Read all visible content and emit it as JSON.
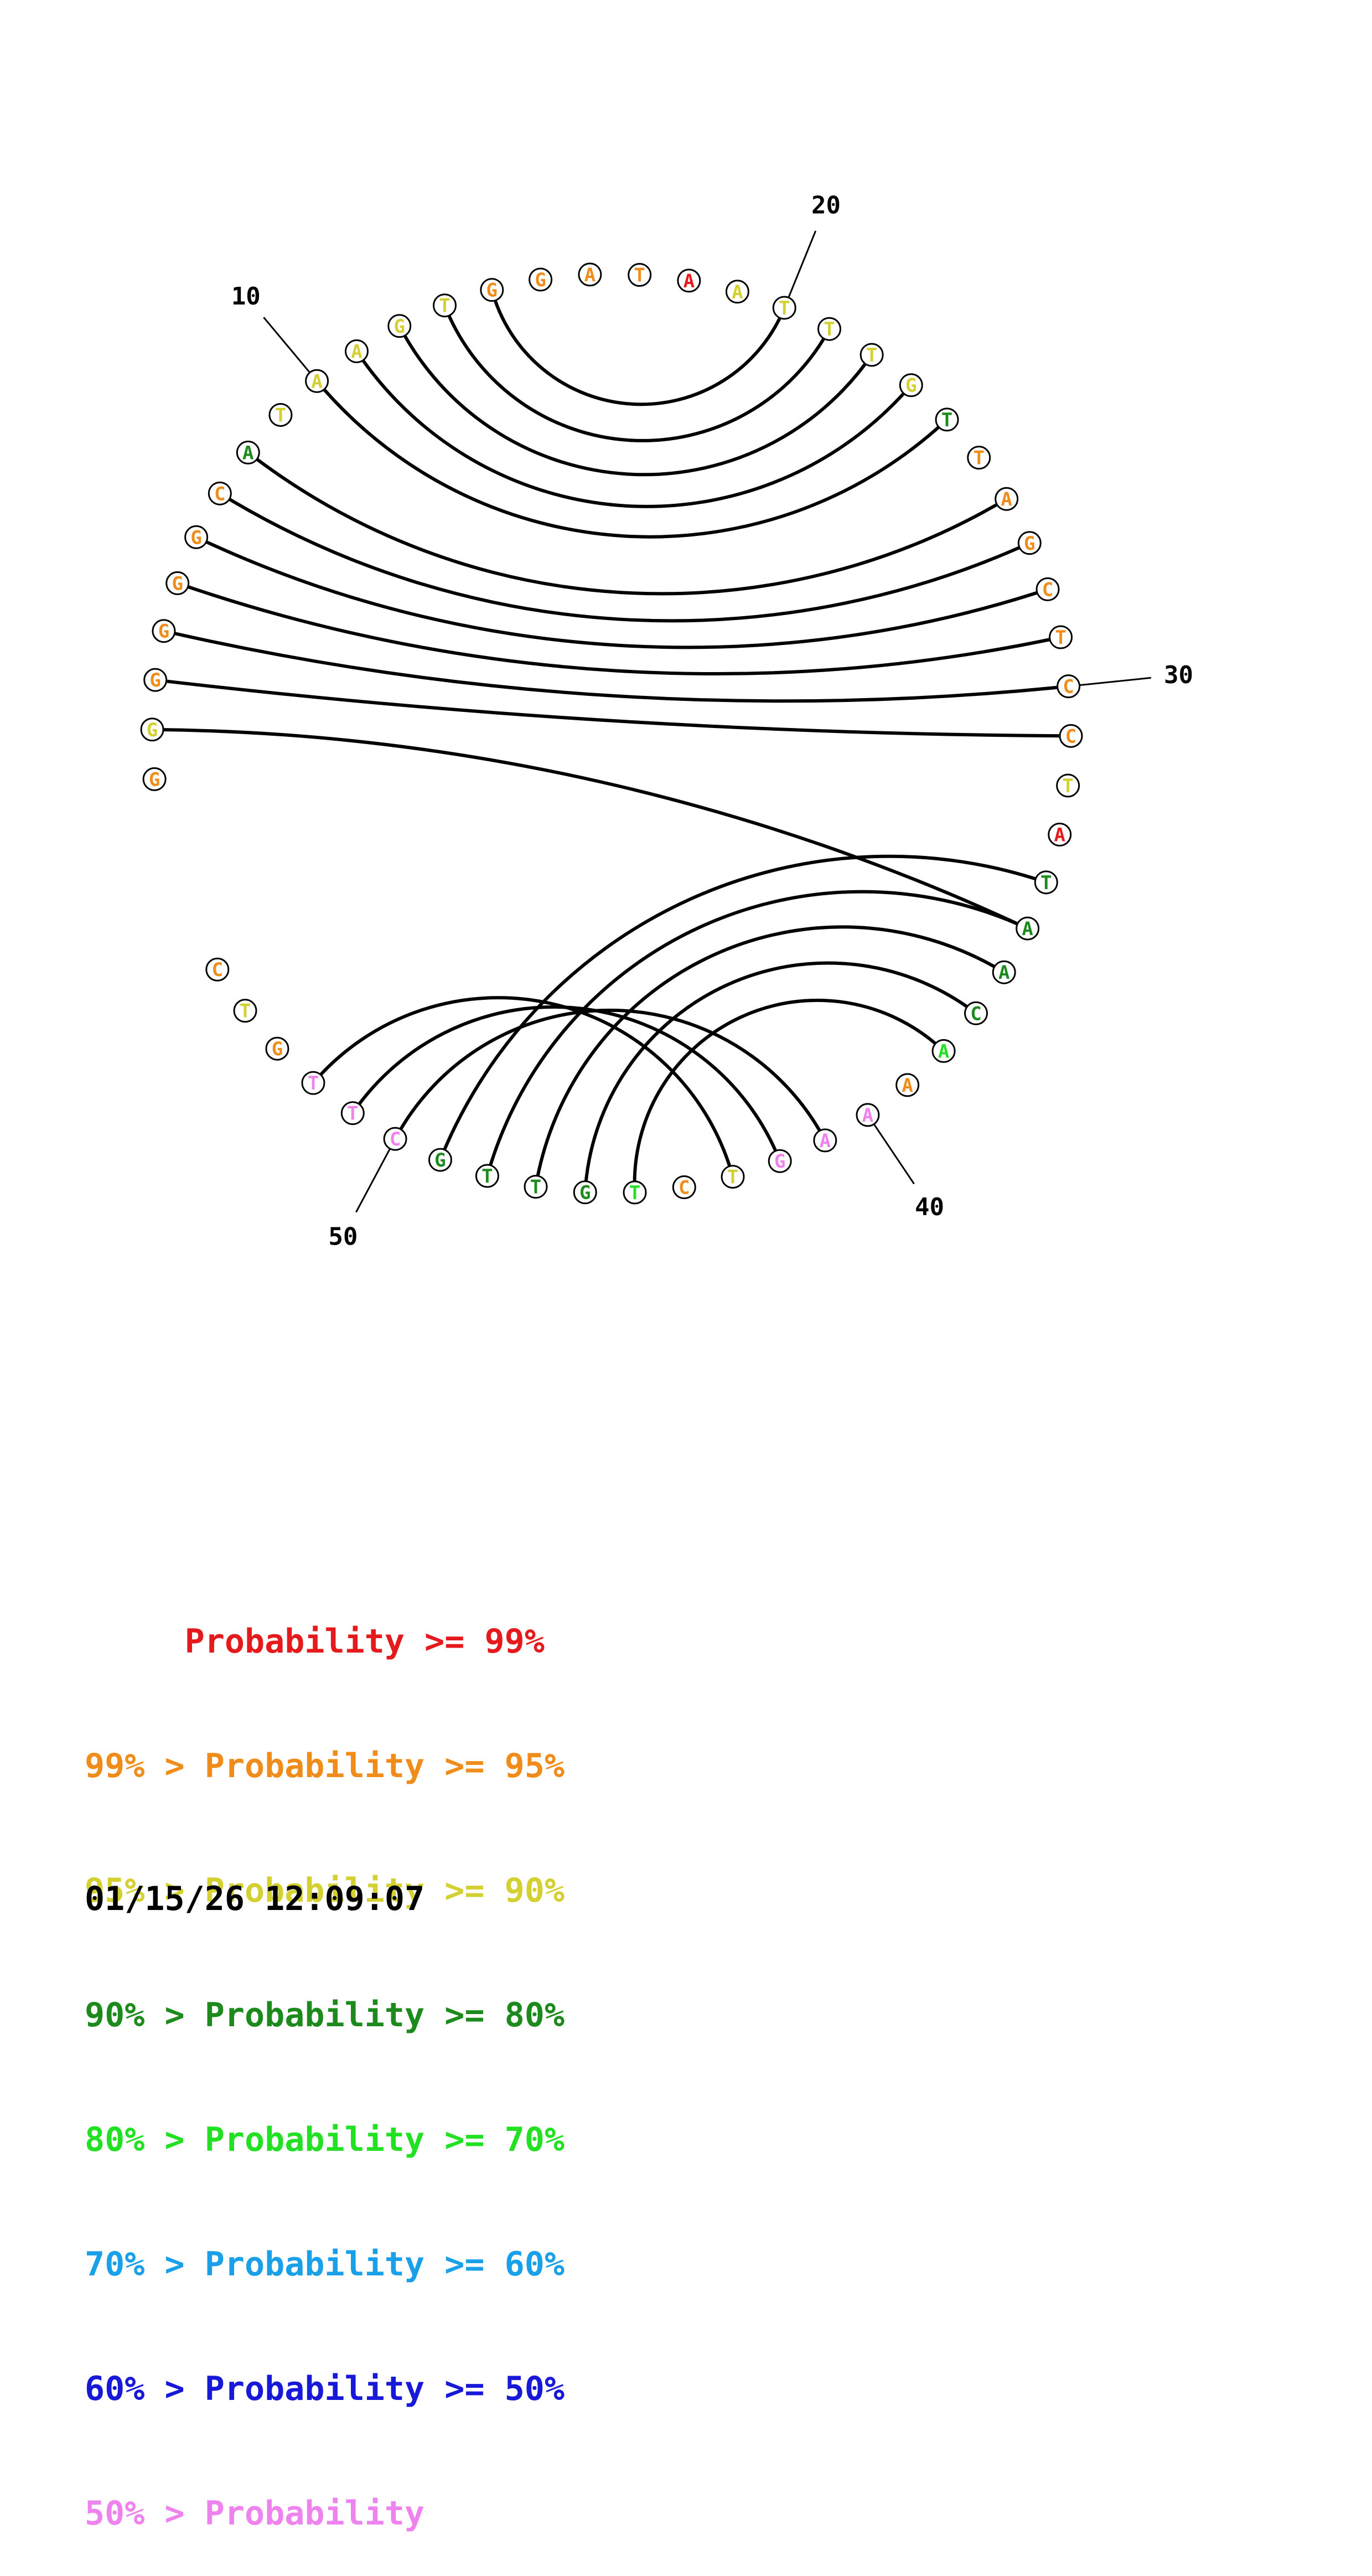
{
  "colors": {
    "p99": "#e41a1c",
    "p95": "#f08c1a",
    "p90": "#d4d032",
    "p80": "#1c8a1c",
    "p70": "#22e022",
    "p60": "#1aa0e8",
    "p50": "#1818d8",
    "plt50": "#ee82ee"
  },
  "sequence": [
    {
      "base": "G",
      "color": "p95"
    },
    {
      "base": "G",
      "color": "p90"
    },
    {
      "base": "G",
      "color": "p95"
    },
    {
      "base": "G",
      "color": "p95"
    },
    {
      "base": "G",
      "color": "p95"
    },
    {
      "base": "G",
      "color": "p95"
    },
    {
      "base": "C",
      "color": "p95"
    },
    {
      "base": "A",
      "color": "p80"
    },
    {
      "base": "T",
      "color": "p90"
    },
    {
      "base": "A",
      "color": "p90"
    },
    {
      "base": "A",
      "color": "p90"
    },
    {
      "base": "G",
      "color": "p90"
    },
    {
      "base": "T",
      "color": "p90"
    },
    {
      "base": "G",
      "color": "p95"
    },
    {
      "base": "G",
      "color": "p95"
    },
    {
      "base": "A",
      "color": "p95"
    },
    {
      "base": "T",
      "color": "p95"
    },
    {
      "base": "A",
      "color": "p99"
    },
    {
      "base": "A",
      "color": "p90"
    },
    {
      "base": "T",
      "color": "p90"
    },
    {
      "base": "T",
      "color": "p90"
    },
    {
      "base": "T",
      "color": "p90"
    },
    {
      "base": "G",
      "color": "p90"
    },
    {
      "base": "T",
      "color": "p80"
    },
    {
      "base": "T",
      "color": "p95"
    },
    {
      "base": "A",
      "color": "p95"
    },
    {
      "base": "G",
      "color": "p95"
    },
    {
      "base": "C",
      "color": "p95"
    },
    {
      "base": "T",
      "color": "p95"
    },
    {
      "base": "C",
      "color": "p95"
    },
    {
      "base": "C",
      "color": "p95"
    },
    {
      "base": "T",
      "color": "p90"
    },
    {
      "base": "A",
      "color": "p99"
    },
    {
      "base": "T",
      "color": "p80"
    },
    {
      "base": "A",
      "color": "p80"
    },
    {
      "base": "A",
      "color": "p80"
    },
    {
      "base": "C",
      "color": "p80"
    },
    {
      "base": "A",
      "color": "p70"
    },
    {
      "base": "A",
      "color": "p95"
    },
    {
      "base": "A",
      "color": "plt50"
    },
    {
      "base": "A",
      "color": "plt50"
    },
    {
      "base": "G",
      "color": "plt50"
    },
    {
      "base": "T",
      "color": "p90"
    },
    {
      "base": "C",
      "color": "p95"
    },
    {
      "base": "T",
      "color": "p70"
    },
    {
      "base": "G",
      "color": "p80"
    },
    {
      "base": "T",
      "color": "p80"
    },
    {
      "base": "T",
      "color": "p80"
    },
    {
      "base": "G",
      "color": "p80"
    },
    {
      "base": "C",
      "color": "plt50"
    },
    {
      "base": "T",
      "color": "plt50"
    },
    {
      "base": "T",
      "color": "plt50"
    },
    {
      "base": "G",
      "color": "p95"
    },
    {
      "base": "T",
      "color": "p90"
    },
    {
      "base": "C",
      "color": "p95"
    }
  ],
  "pairs": [
    [
      2,
      35
    ],
    [
      3,
      31
    ],
    [
      4,
      30
    ],
    [
      5,
      29
    ],
    [
      6,
      28
    ],
    [
      7,
      27
    ],
    [
      8,
      26
    ],
    [
      10,
      24
    ],
    [
      11,
      23
    ],
    [
      12,
      22
    ],
    [
      13,
      21
    ],
    [
      14,
      20
    ],
    [
      34,
      49
    ],
    [
      35,
      48
    ],
    [
      36,
      47
    ],
    [
      37,
      46
    ],
    [
      38,
      45
    ],
    [
      41,
      50
    ],
    [
      42,
      51
    ],
    [
      43,
      52
    ]
  ],
  "tick_labels": [
    {
      "index": 10,
      "text": "10"
    },
    {
      "index": 20,
      "text": "20"
    },
    {
      "index": 30,
      "text": "30"
    },
    {
      "index": 40,
      "text": "40"
    },
    {
      "index": 50,
      "text": "50"
    }
  ],
  "legend": [
    {
      "text": "     Probability >= 99%",
      "color": "p99"
    },
    {
      "text": "99% > Probability >= 95%",
      "color": "p95"
    },
    {
      "text": "95% > Probability >= 90%",
      "color": "p90"
    },
    {
      "text": "90% > Probability >= 80%",
      "color": "p80"
    },
    {
      "text": "80% > Probability >= 70%",
      "color": "p70"
    },
    {
      "text": "70% > Probability >= 60%",
      "color": "p60"
    },
    {
      "text": "60% > Probability >= 50%",
      "color": "p50"
    },
    {
      "text": "50% > Probability",
      "color": "plt50"
    }
  ],
  "timestamp": "01/15/26 12:09:07"
}
